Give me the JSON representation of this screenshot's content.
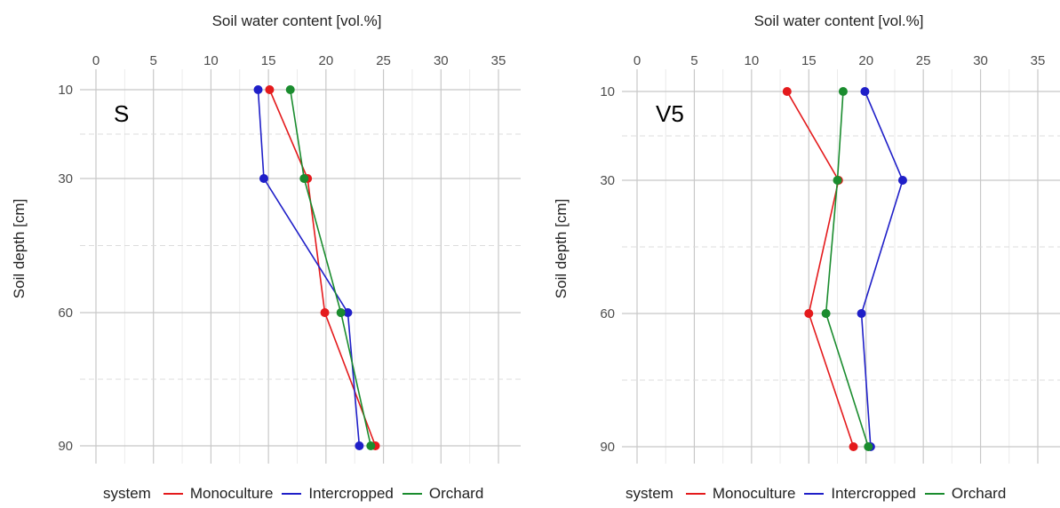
{
  "legend": {
    "title": "system",
    "items": [
      {
        "label": "Monoculture",
        "color": "#e41a1c"
      },
      {
        "label": "Intercropped",
        "color": "#1f1fc8"
      },
      {
        "label": "Orchard",
        "color": "#1a8c2e"
      }
    ]
  },
  "chart_data": [
    {
      "type": "line",
      "panel_label": "S",
      "xlabel": "Soil water content [vol.%]",
      "ylabel": "Soil depth [cm]",
      "xlim": [
        0,
        37
      ],
      "xticks": [
        0,
        5,
        10,
        15,
        20,
        25,
        30,
        35
      ],
      "x_axis_position": "top",
      "y_reversed": true,
      "y_categories": [
        10,
        30,
        60,
        90
      ],
      "grid": true,
      "legend_position": "bottom",
      "series": [
        {
          "name": "Monoculture",
          "color": "#e41a1c",
          "depth": [
            10,
            30,
            60,
            90
          ],
          "values": [
            15.1,
            18.4,
            19.9,
            24.3
          ]
        },
        {
          "name": "Intercropped",
          "color": "#1f1fc8",
          "depth": [
            10,
            30,
            60,
            90
          ],
          "values": [
            14.1,
            14.6,
            21.9,
            22.9
          ]
        },
        {
          "name": "Orchard",
          "color": "#1a8c2e",
          "depth": [
            10,
            30,
            60,
            90
          ],
          "values": [
            16.9,
            18.1,
            21.3,
            23.9
          ]
        }
      ]
    },
    {
      "type": "line",
      "panel_label": "V5",
      "xlabel": "Soil water content [vol.%]",
      "ylabel": "Soil depth [cm]",
      "xlim": [
        0,
        37
      ],
      "xticks": [
        0,
        5,
        10,
        15,
        20,
        25,
        30,
        35
      ],
      "x_axis_position": "top",
      "y_reversed": true,
      "y_categories": [
        10,
        30,
        60,
        90
      ],
      "grid": true,
      "legend_position": "bottom",
      "series": [
        {
          "name": "Monoculture",
          "color": "#e41a1c",
          "depth": [
            10,
            30,
            60,
            90
          ],
          "values": [
            13.1,
            17.6,
            15.0,
            18.9
          ]
        },
        {
          "name": "Intercropped",
          "color": "#1f1fc8",
          "depth": [
            10,
            30,
            60,
            90
          ],
          "values": [
            19.9,
            23.2,
            19.6,
            20.4
          ]
        },
        {
          "name": "Orchard",
          "color": "#1a8c2e",
          "depth": [
            10,
            30,
            60,
            90
          ],
          "values": [
            18.0,
            17.5,
            16.5,
            20.2
          ]
        }
      ]
    }
  ]
}
